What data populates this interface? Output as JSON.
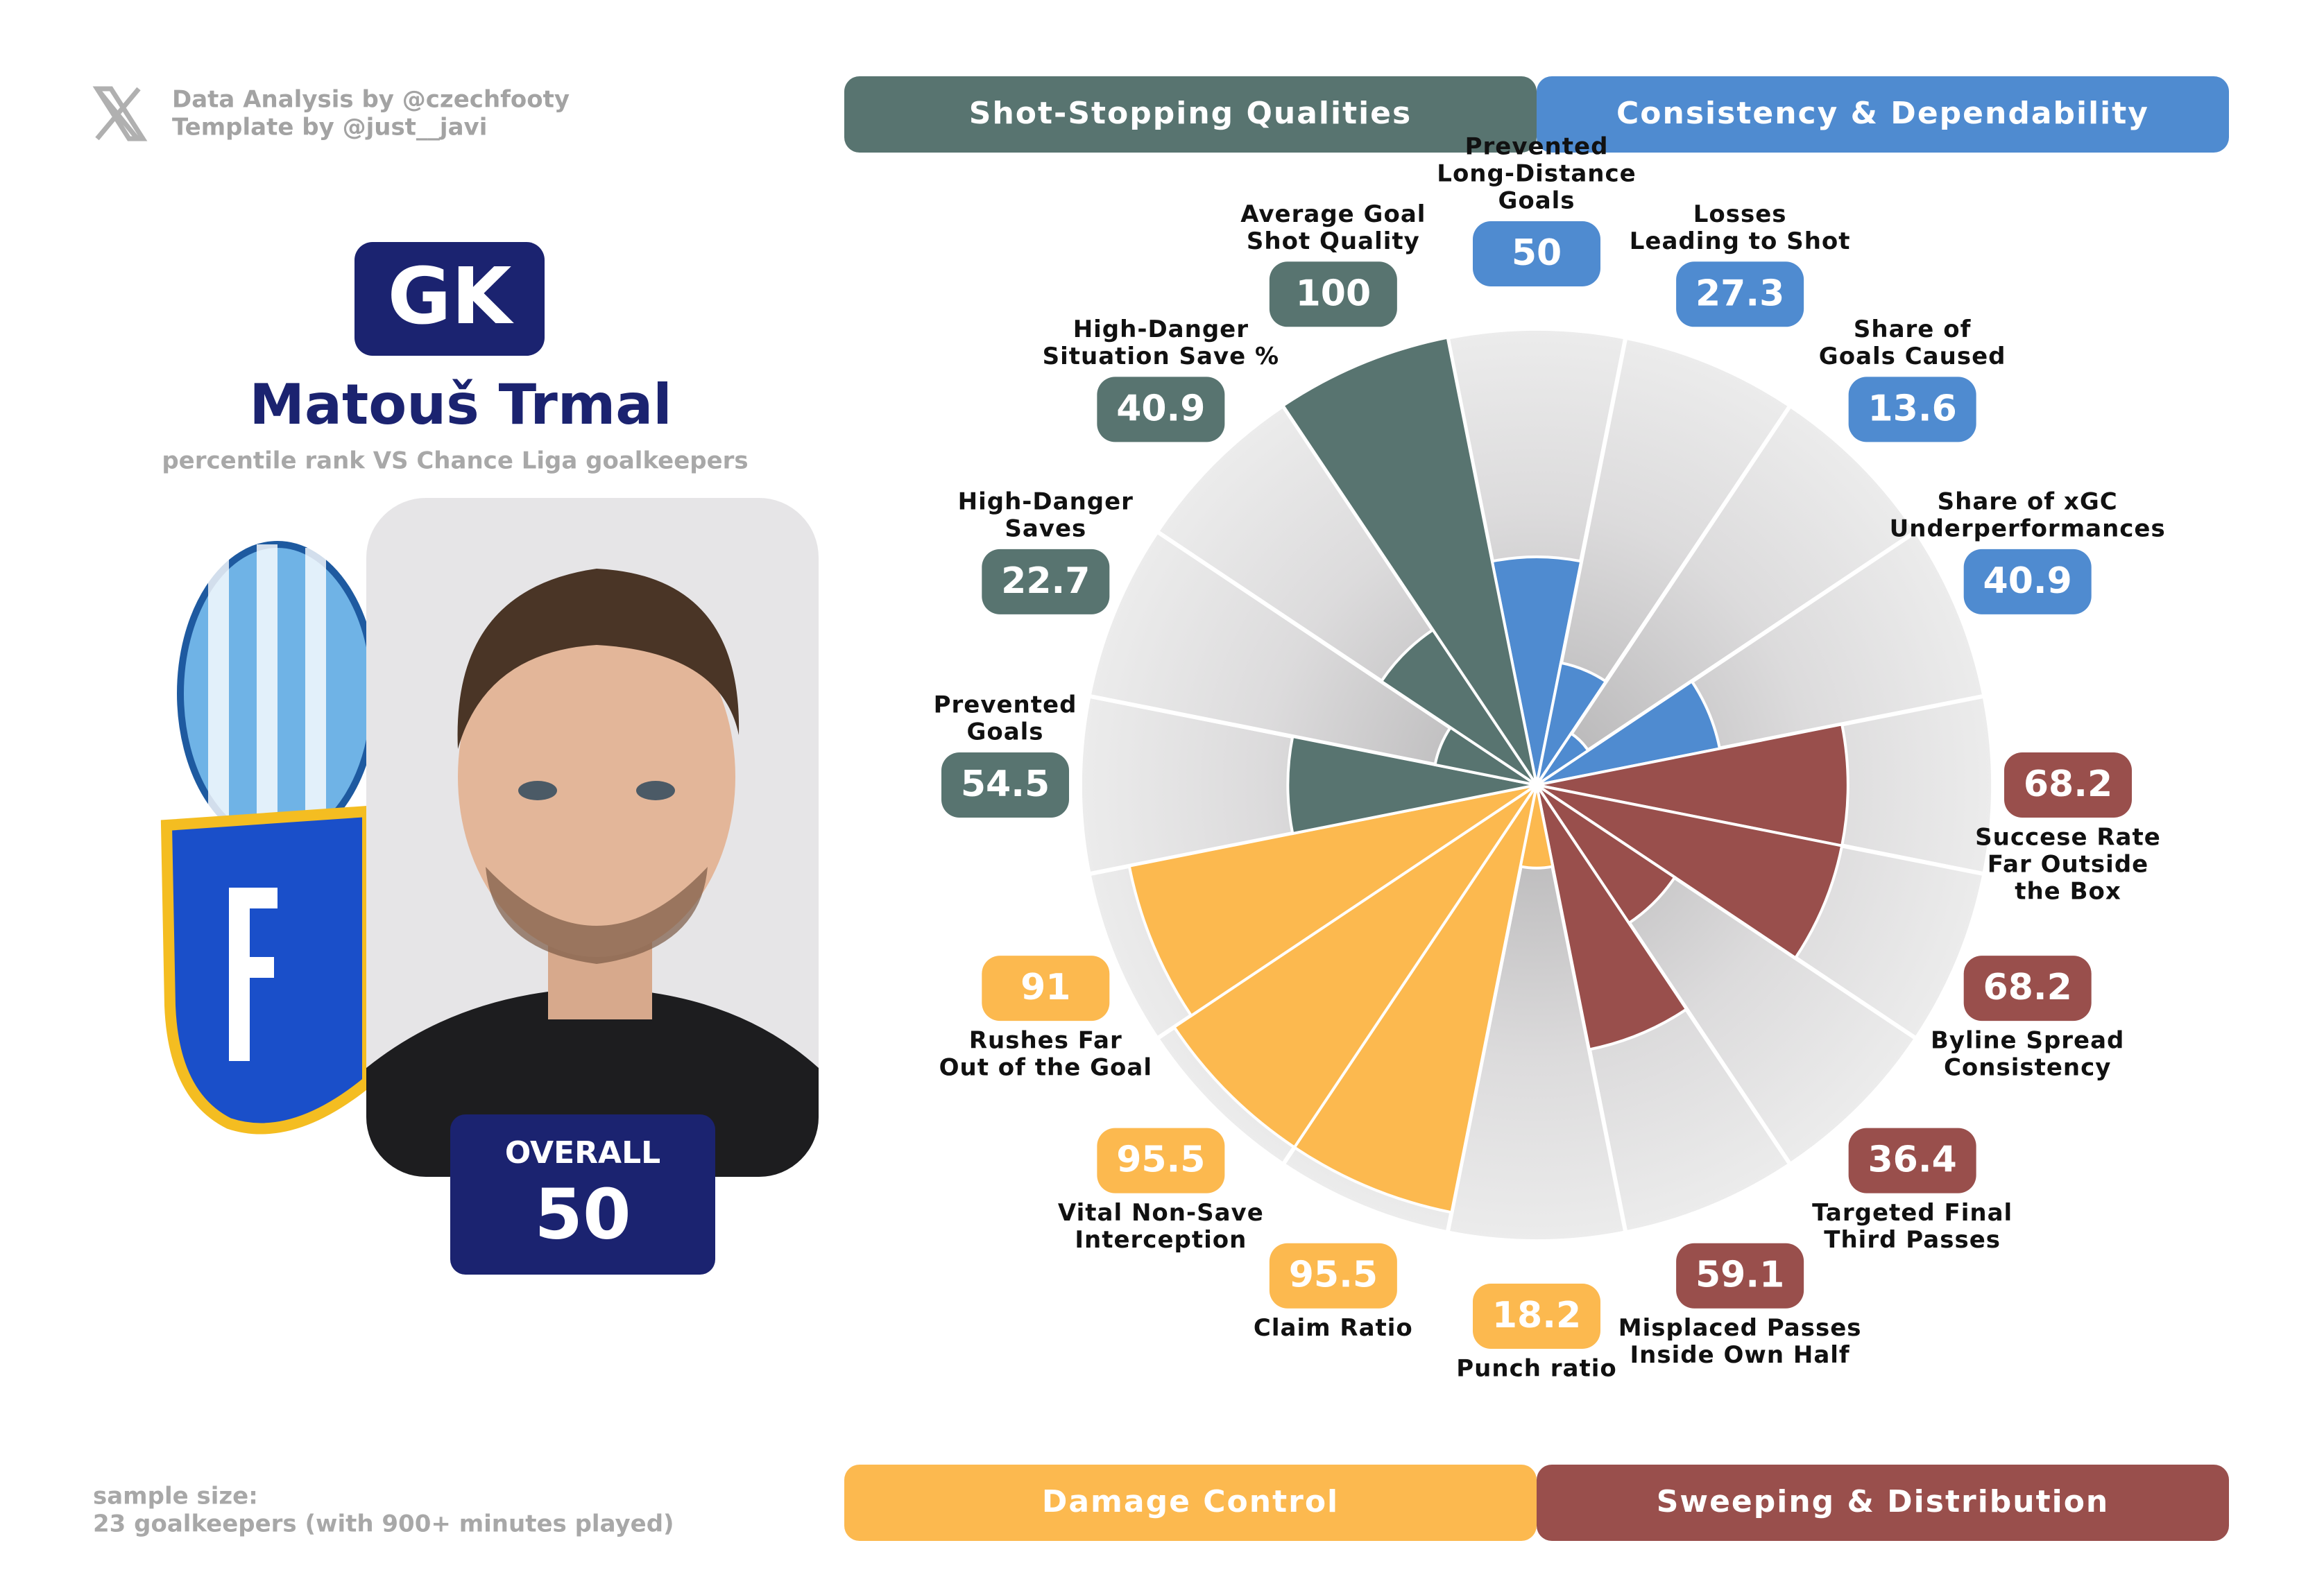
{
  "header": {
    "credits": [
      "Data Analysis by @czechfooty",
      "Template by @just__javi"
    ]
  },
  "player": {
    "position": "GK",
    "name": "Matouš Trmal",
    "subtitle": "percentile rank VS Chance Liga goalkeepers",
    "overall_label": "OVERALL",
    "overall": 50
  },
  "footer": [
    "sample size:",
    "23 goalkeepers (with 900+ minutes played)"
  ],
  "chart_data": {
    "type": "pizza",
    "rlim": [
      0,
      100
    ],
    "groups": [
      {
        "name": "Shot-Stopping Qualities",
        "color": "#587470"
      },
      {
        "name": "Consistency & Dependability",
        "color": "#4f8bd0"
      },
      {
        "name": "Damage Control",
        "color": "#fcb94f"
      },
      {
        "name": "Sweeping & Distribution",
        "color": "#994f4c"
      }
    ],
    "categories": [
      [
        "Prevented",
        "Long-Distance",
        "Goals"
      ],
      [
        "Losses",
        "Leading to Shot"
      ],
      [
        "Share of",
        "Goals Caused"
      ],
      [
        "Share of xGC",
        "Underperformances"
      ],
      [
        "Succese Rate",
        "Far Outside",
        "the Box"
      ],
      [
        "Byline Spread",
        "Consistency"
      ],
      [
        "Targeted Final",
        "Third Passes"
      ],
      [
        "Misplaced Passes",
        "Inside Own Half"
      ],
      [
        "Punch ratio"
      ],
      [
        "Claim Ratio"
      ],
      [
        "Vital Non-Save",
        "Interception"
      ],
      [
        "Rushes Far",
        "Out of the Goal"
      ],
      [
        "Prevented",
        "Goals"
      ],
      [
        "High-Danger",
        "Saves"
      ],
      [
        "High-Danger",
        "Situation Save %"
      ],
      [
        "Average Goal",
        "Shot Quality"
      ]
    ],
    "values": [
      50,
      27.3,
      13.6,
      40.9,
      68.2,
      68.2,
      36.4,
      59.1,
      18.2,
      95.5,
      95.5,
      91,
      54.5,
      22.7,
      40.9,
      100
    ],
    "colors": [
      "#4f8bd0",
      "#4f8bd0",
      "#4f8bd0",
      "#4f8bd0",
      "#994f4c",
      "#994f4c",
      "#994f4c",
      "#994f4c",
      "#fcb94f",
      "#fcb94f",
      "#fcb94f",
      "#fcb94f",
      "#587470",
      "#587470",
      "#587470",
      "#587470"
    ]
  }
}
